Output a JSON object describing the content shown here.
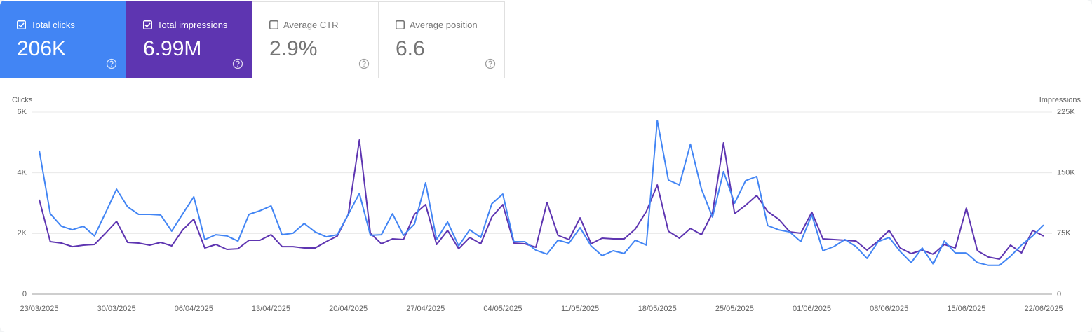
{
  "cards": [
    {
      "label": "Total clicks",
      "value": "206K",
      "selected": true,
      "color": "#4285f4"
    },
    {
      "label": "Total impressions",
      "value": "6.99M",
      "selected": true,
      "color": "#5e35b1"
    },
    {
      "label": "Average CTR",
      "value": "2.9%",
      "selected": false
    },
    {
      "label": "Average position",
      "value": "6.6",
      "selected": false
    }
  ],
  "chart_data": {
    "type": "line",
    "y_label": "Clicks",
    "y2_label": "Impressions",
    "categories": [
      "23/03/2025",
      null,
      null,
      null,
      null,
      null,
      null,
      "30/03/2025",
      null,
      null,
      null,
      null,
      null,
      null,
      "06/04/2025",
      null,
      null,
      null,
      null,
      null,
      null,
      "13/04/2025",
      null,
      null,
      null,
      null,
      null,
      null,
      "20/04/2025",
      null,
      null,
      null,
      null,
      null,
      null,
      "27/04/2025",
      null,
      null,
      null,
      null,
      null,
      null,
      "04/05/2025",
      null,
      null,
      null,
      null,
      null,
      null,
      "11/05/2025",
      null,
      null,
      null,
      null,
      null,
      null,
      "18/05/2025",
      null,
      null,
      null,
      null,
      null,
      null,
      "25/05/2025",
      null,
      null,
      null,
      null,
      null,
      null,
      "01/06/2025",
      null,
      null,
      null,
      null,
      null,
      null,
      "08/06/2025",
      null,
      null,
      null,
      null,
      null,
      null,
      "15/06/2025",
      null,
      null,
      null,
      null,
      null,
      null,
      "22/06/2025"
    ],
    "series": [
      {
        "color": "#4285f4",
        "axis": "y",
        "values": [
          4730,
          2650,
          2240,
          2120,
          2240,
          1920,
          2680,
          3460,
          2880,
          2630,
          2630,
          2610,
          2080,
          2650,
          3210,
          1800,
          1960,
          1920,
          1750,
          2630,
          2750,
          2910,
          1960,
          2010,
          2330,
          2050,
          1890,
          1960,
          2630,
          3320,
          1940,
          1960,
          2650,
          1940,
          2310,
          3670,
          1800,
          2380,
          1590,
          2120,
          1870,
          2980,
          3300,
          1730,
          1730,
          1450,
          1320,
          1780,
          1680,
          2190,
          1590,
          1270,
          1430,
          1340,
          1780,
          1620,
          5720,
          3760,
          3600,
          4940,
          3460,
          2540,
          4040,
          3000,
          3740,
          3880,
          2260,
          2120,
          2050,
          1730,
          2610,
          1430,
          1570,
          1800,
          1570,
          1180,
          1730,
          1870,
          1410,
          1040,
          1520,
          990,
          1750,
          1360,
          1360,
          1040,
          950,
          950,
          1250,
          1620,
          1920,
          2280
        ]
      },
      {
        "color": "#5e35b1",
        "axis": "y2",
        "values": [
          116800,
          64900,
          63200,
          58800,
          60600,
          61400,
          75300,
          90000,
          64000,
          63200,
          60600,
          64000,
          59700,
          79600,
          92600,
          57100,
          61400,
          55400,
          56200,
          66600,
          66600,
          73600,
          58800,
          58800,
          57100,
          57100,
          64900,
          71800,
          98700,
          190400,
          75300,
          62300,
          68400,
          67500,
          98700,
          110800,
          61400,
          78800,
          56200,
          70100,
          62300,
          95200,
          110800,
          63200,
          62300,
          58000,
          113400,
          72700,
          67500,
          94300,
          62300,
          69200,
          68400,
          68400,
          80500,
          102100,
          135000,
          77900,
          69200,
          81300,
          73600,
          100400,
          186900,
          99500,
          109900,
          122000,
          102100,
          92600,
          77000,
          75300,
          101300,
          68400,
          67500,
          66600,
          65700,
          54500,
          65700,
          78800,
          57100,
          50200,
          54500,
          49300,
          61400,
          57100,
          106400,
          53700,
          45900,
          43300,
          60600,
          51100,
          78800,
          71800
        ]
      }
    ],
    "ylim": [
      0,
      6000
    ],
    "yticks": [
      0,
      {
        "value": 2000,
        "label": "2K"
      },
      {
        "value": 4000,
        "label": "4K"
      },
      {
        "value": 6000,
        "label": "6K"
      }
    ],
    "y2lim": [
      0,
      225000
    ],
    "y2ticks": [
      0,
      {
        "value": 75000,
        "label": "75K"
      },
      {
        "value": 150000,
        "label": "150K"
      },
      {
        "value": 225000,
        "label": "225K"
      }
    ],
    "grid": true
  }
}
